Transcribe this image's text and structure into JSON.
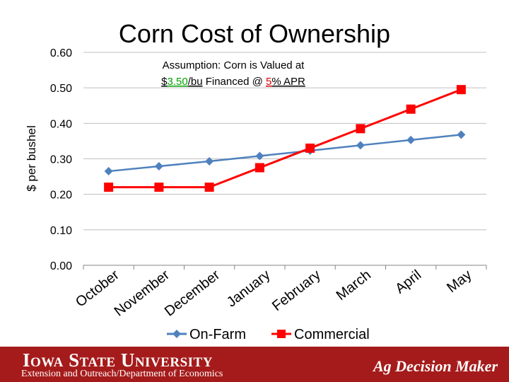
{
  "chart_data": {
    "type": "line",
    "title": "Corn Cost of Ownership",
    "subtitle": {
      "line1": "Assumption: Corn is Valued at",
      "price": "3.50",
      "price_prefix": "$",
      "price_suffix": "/bu",
      "middle": " Financed @ ",
      "rate": "5",
      "rate_suffix": "% APR"
    },
    "xlabel": "",
    "ylabel": "$ per bushel",
    "ylim": [
      0,
      0.6
    ],
    "yticks": [
      "0.00",
      "0.10",
      "0.20",
      "0.30",
      "0.40",
      "0.50",
      "0.60"
    ],
    "categories": [
      "October",
      "November",
      "December",
      "January",
      "February",
      "March",
      "April",
      "May"
    ],
    "series": [
      {
        "name": "On-Farm",
        "color": "#4f81bd",
        "marker": "diamond",
        "values": [
          0.265,
          0.279,
          0.293,
          0.308,
          0.323,
          0.338,
          0.353,
          0.368
        ]
      },
      {
        "name": "Commercial",
        "color": "#ff0000",
        "marker": "square",
        "values": [
          0.22,
          0.22,
          0.22,
          0.275,
          0.33,
          0.385,
          0.44,
          0.495
        ]
      }
    ],
    "legend": "bottom",
    "highlight_colors": {
      "price": "#00a000",
      "rate": "#e00000"
    }
  },
  "footer": {
    "university": "Iowa State University",
    "department": "Extension and Outreach/Department of Economics",
    "brand": "Ag Decision Maker"
  }
}
